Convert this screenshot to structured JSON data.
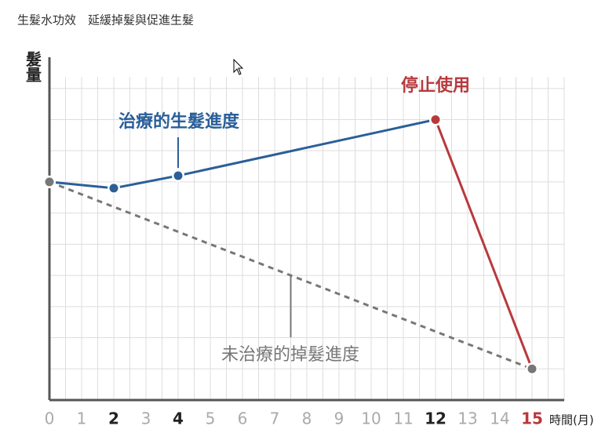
{
  "chart_data": {
    "type": "line",
    "title": "生髮水功效　延緩掉髮與促進生髮",
    "y_label": "髮量",
    "x_label": "時間(月)",
    "xlim": [
      0,
      16
    ],
    "ylim": [
      0,
      11
    ],
    "xticks": [
      0,
      1,
      2,
      3,
      4,
      5,
      6,
      7,
      8,
      9,
      10,
      11,
      12,
      13,
      14,
      15
    ],
    "xtick_colors": [
      "#aaa",
      "#aaa",
      "#222",
      "#aaa",
      "#222",
      "#aaa",
      "#aaa",
      "#aaa",
      "#aaa",
      "#aaa",
      "#aaa",
      "#aaa",
      "#222",
      "#aaa",
      "#aaa",
      "#b8393c"
    ],
    "grid": {
      "x_step": 0.5,
      "y_step": 1,
      "color": "#ddd"
    },
    "series": [
      {
        "name": "治療的生髮進度",
        "color": "#2a5f98",
        "x": [
          0,
          2,
          4,
          12
        ],
        "values": [
          7,
          6.8,
          7.2,
          9
        ]
      },
      {
        "name": "停止使用",
        "color": "#b8393c",
        "x": [
          12,
          15
        ],
        "values": [
          9,
          1
        ]
      },
      {
        "name": "未治療的掉髮進度",
        "color": "#777",
        "dashed": true,
        "x": [
          0,
          15
        ],
        "values": [
          7,
          1
        ]
      }
    ]
  }
}
